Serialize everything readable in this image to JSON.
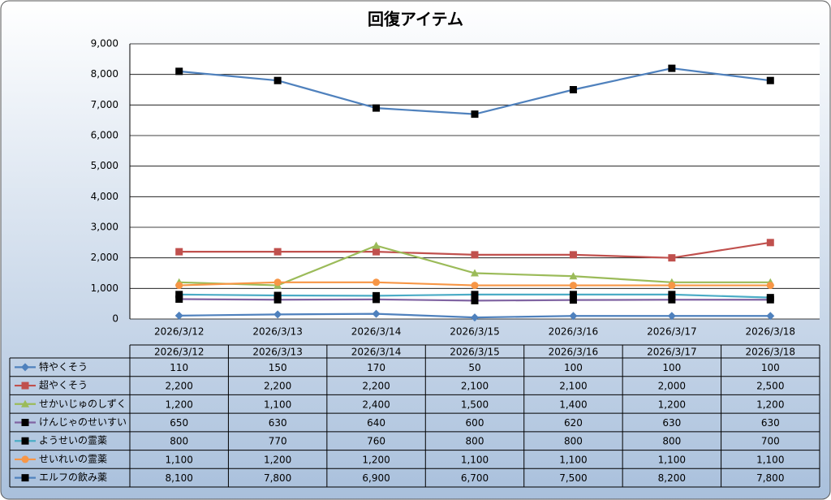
{
  "chart_data": {
    "type": "line",
    "title": "回復アイテム",
    "categories": [
      "2026/3/12",
      "2026/3/13",
      "2026/3/14",
      "2026/3/15",
      "2026/3/16",
      "2026/3/17",
      "2026/3/18"
    ],
    "series": [
      {
        "name": "特やくそう",
        "color": "#4f81bd",
        "marker": "diamond",
        "marker_color": "#4f81bd",
        "values": [
          110,
          150,
          170,
          50,
          100,
          100,
          100
        ]
      },
      {
        "name": "超やくそう",
        "color": "#c0504d",
        "marker": "square",
        "marker_color": "#c0504d",
        "values": [
          2200,
          2200,
          2200,
          2100,
          2100,
          2000,
          2500
        ],
        "value_labels": [
          "2,200",
          "2,200",
          "2,200",
          "2,100",
          "2,100",
          "2,000",
          "2,500"
        ]
      },
      {
        "name": "せかいじゅのしずく",
        "color": "#9bbb59",
        "marker": "triangle",
        "marker_color": "#9bbb59",
        "values": [
          1200,
          1100,
          2400,
          1500,
          1400,
          1200,
          1200
        ],
        "value_labels": [
          "1,200",
          "1,100",
          "2,400",
          "1,500",
          "1,400",
          "1,200",
          "1,200"
        ]
      },
      {
        "name": "けんじゃのせいすい",
        "color": "#8064a2",
        "marker": "square",
        "marker_color": "#000000",
        "values": [
          650,
          630,
          640,
          600,
          620,
          630,
          630
        ]
      },
      {
        "name": "ようせいの霊薬",
        "color": "#4bacc6",
        "marker": "square",
        "marker_color": "#000000",
        "values": [
          800,
          770,
          760,
          800,
          800,
          800,
          700
        ]
      },
      {
        "name": "せいれいの霊薬",
        "color": "#f79646",
        "marker": "circle",
        "marker_color": "#f79646",
        "values": [
          1100,
          1200,
          1200,
          1100,
          1100,
          1100,
          1100
        ],
        "value_labels": [
          "1,100",
          "1,200",
          "1,200",
          "1,100",
          "1,100",
          "1,100",
          "1,100"
        ]
      },
      {
        "name": "エルフの飲み薬",
        "color": "#4f81bd",
        "marker": "square",
        "marker_color": "#000000",
        "values": [
          8100,
          7800,
          6900,
          6700,
          7500,
          8200,
          7800
        ],
        "value_labels": [
          "8,100",
          "7,800",
          "6,900",
          "6,700",
          "7,500",
          "8,200",
          "7,800"
        ]
      }
    ],
    "ylim": [
      0,
      9000
    ],
    "yticks": [
      0,
      {
        "value": 1000,
        "label": "1,000"
      },
      {
        "value": 2000,
        "label": "2,000"
      },
      {
        "value": 3000,
        "label": "3,000"
      },
      {
        "value": 4000,
        "label": "4,000"
      },
      {
        "value": 5000,
        "label": "5,000"
      },
      {
        "value": 6000,
        "label": "6,000"
      },
      {
        "value": 7000,
        "label": "7,000"
      },
      {
        "value": 8000,
        "label": "8,000"
      },
      {
        "value": 9000,
        "label": "9,000"
      }
    ],
    "grid": true
  }
}
